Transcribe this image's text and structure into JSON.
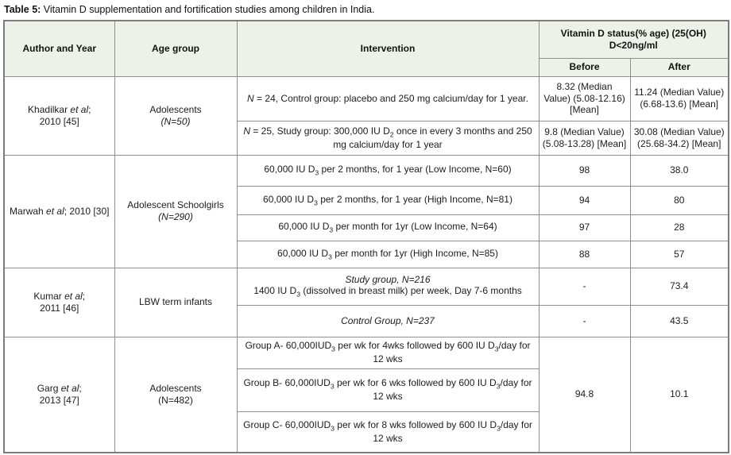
{
  "title": {
    "prefix": "Table 5:",
    "text": " Vitamin D supplementation and fortification studies among children in India."
  },
  "colors": {
    "header_bg": "#edf2e8",
    "border_gray": "#8f8f8f",
    "text": "#1c1c1c"
  },
  "table": {
    "headers": {
      "author": "Author and Year",
      "age_group": "Age group",
      "intervention": "Intervention",
      "status_group": "Vitamin D status(% age) (25(OH) D<20ng/ml",
      "before": "Before",
      "after": "After"
    },
    "groups": [
      {
        "author_html": "Khadilkar <i>et al</i>;<br>2010 [45]",
        "age_html": "Adolescents<br><i>(N=50)</i>",
        "rows": [
          {
            "intervention_html": "<i>N</i> = 24, Control group: placebo and 250 mg calcium/day for 1 year.",
            "before": "8.32 (Median Value) (5.08-12.16) [Mean]",
            "after": "11.24 (Median Value) (6.68-13.6) [Mean]"
          },
          {
            "intervention_html": "<i>N</i> = 25, Study group: 300,000 IU D<sub>2</sub> once in every 3 months and 250 mg calcium/day for 1 year",
            "before": "9.8 (Median Value) (5.08-13.28) [Mean]",
            "after": "30.08 (Median Value) (25.68-34.2) [Mean]"
          }
        ]
      },
      {
        "author_html": "Marwah <i>et al</i>; 2010 [30]",
        "age_html": "Adolescent Schoolgirls<br><i>(N=290)</i>",
        "rows": [
          {
            "intervention_html": "60,000 IU D<sub>3</sub> per 2 months, for 1 year (Low Income, N=60)",
            "before": "98",
            "after": "38.0"
          },
          {
            "intervention_html": "60,000 IU D<sub>3</sub> per 2 months, for 1 year (High Income, N=81)",
            "before": "94",
            "after": "80"
          },
          {
            "intervention_html": "60,000 IU D<sub>3</sub> per month for 1yr (Low Income, N=64)",
            "before": "97",
            "after": "28"
          },
          {
            "intervention_html": "60,000 IU D<sub>3</sub> per month for 1yr (High Income, N=85)",
            "before": "88",
            "after": "57"
          }
        ]
      },
      {
        "author_html": "Kumar <i>et al</i>;<br>2011 [46]",
        "age_html": "LBW term infants",
        "rows": [
          {
            "intervention_html": "<i>Study group, N=216</i><br>1400 IU D<sub>3</sub> (dissolved in breast milk) per week, Day 7-6 months",
            "before": "-",
            "after": "73.4"
          },
          {
            "intervention_html": "<i>Control Group, N=237</i>",
            "before": "-",
            "after": "43.5"
          }
        ]
      },
      {
        "author_html": "Garg <i>et al</i>;<br>2013 [47]",
        "age_html": "Adolescents<br>(N=482)",
        "before": "94.8",
        "after": "10.1",
        "rows": [
          {
            "intervention_html": "Group A- 60,000IUD<sub>3</sub> per wk for 4wks followed by  600 IU D<sub>3</sub>/day for 12 wks"
          },
          {
            "intervention_html": "Group B- 60,000IUD<sub>3</sub> per wk for 6 wks followed by  600 IU D<sub>3</sub>/day for 12 wks"
          },
          {
            "intervention_html": "Group C- 60,000IUD<sub>3</sub> per wk for 8 wks followed by  600 IU D<sub>3</sub>/day for 12 wks"
          }
        ]
      }
    ]
  }
}
